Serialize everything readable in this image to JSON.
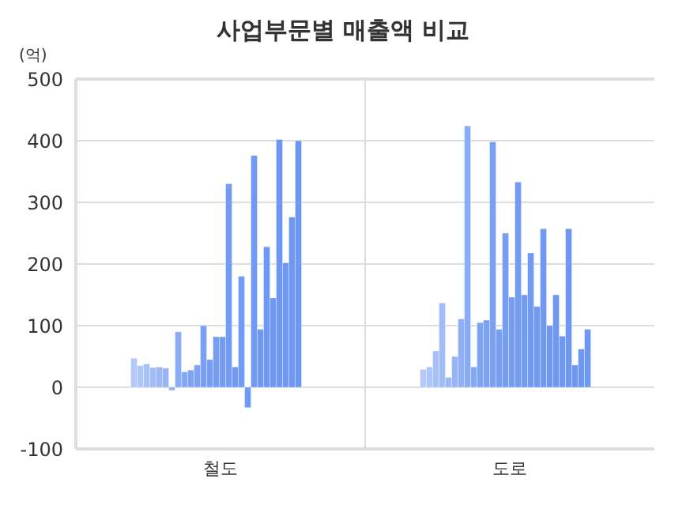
{
  "chart_data": {
    "type": "bar",
    "title": "사업부문별 매출액 비교",
    "ylabel": "(억)",
    "categories": [
      "철도",
      "도로"
    ],
    "ylim": [
      -100,
      500
    ],
    "yticks": [
      -100,
      0,
      100,
      200,
      300,
      400,
      500
    ],
    "grid": true,
    "series": [
      {
        "color": "#b4c9f9",
        "values": [
          47,
          29
        ]
      },
      {
        "color": "#aec5f8",
        "values": [
          35,
          33
        ]
      },
      {
        "color": "#a8c0f8",
        "values": [
          38,
          59
        ]
      },
      {
        "color": "#a2bcf7",
        "values": [
          32,
          137
        ]
      },
      {
        "color": "#9cb8f6",
        "values": [
          33,
          16
        ]
      },
      {
        "color": "#96b4f6",
        "values": [
          31,
          50
        ]
      },
      {
        "color": "#90b0f5",
        "values": [
          -5,
          111
        ]
      },
      {
        "color": "#8aabf5",
        "values": [
          90,
          424
        ]
      },
      {
        "color": "#85a8f4",
        "values": [
          25,
          33
        ]
      },
      {
        "color": "#80a4f4",
        "values": [
          28,
          105
        ]
      },
      {
        "color": "#7ca2f3",
        "values": [
          36,
          109
        ]
      },
      {
        "color": "#79a0f3",
        "values": [
          100,
          398
        ]
      },
      {
        "color": "#779ef3",
        "values": [
          45,
          94
        ]
      },
      {
        "color": "#759df2",
        "values": [
          82,
          250
        ]
      },
      {
        "color": "#749cf2",
        "values": [
          82,
          146
        ]
      },
      {
        "color": "#739bf2",
        "values": [
          330,
          333
        ]
      },
      {
        "color": "#729af2",
        "values": [
          33,
          150
        ]
      },
      {
        "color": "#719af2",
        "values": [
          180,
          218
        ]
      },
      {
        "color": "#7099f2",
        "values": [
          -33,
          131
        ]
      },
      {
        "color": "#7099f2",
        "values": [
          376,
          257
        ]
      },
      {
        "color": "#6f98f2",
        "values": [
          94,
          100
        ]
      },
      {
        "color": "#6f98f2",
        "values": [
          228,
          150
        ]
      },
      {
        "color": "#6f98f2",
        "values": [
          145,
          83
        ]
      },
      {
        "color": "#6e97f2",
        "values": [
          402,
          257
        ]
      },
      {
        "color": "#6e97f2",
        "values": [
          202,
          36
        ]
      },
      {
        "color": "#6e97f2",
        "values": [
          276,
          62
        ]
      },
      {
        "color": "#6e97f2",
        "values": [
          400,
          94
        ]
      }
    ]
  }
}
